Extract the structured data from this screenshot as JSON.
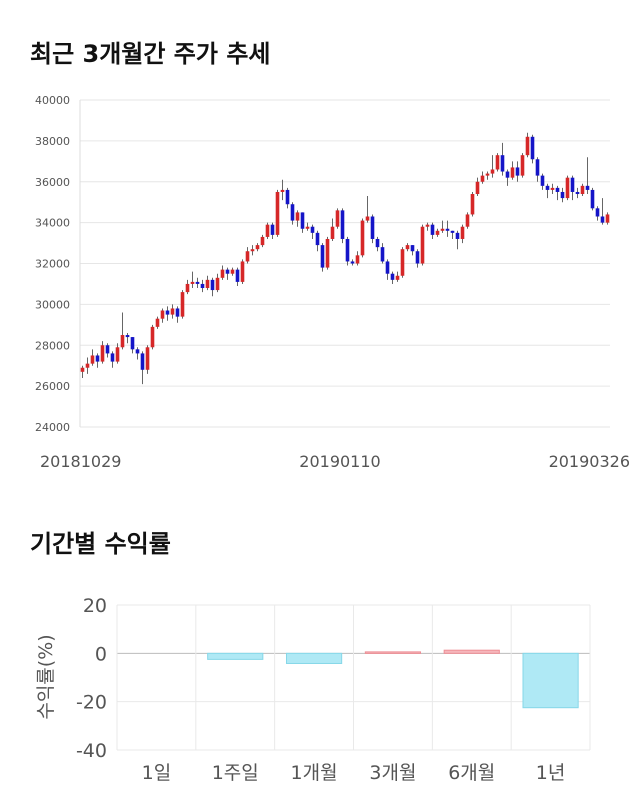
{
  "page": {
    "price_title": "최근 3개월간 주가 추세",
    "return_title": "기간별 수익률"
  },
  "chart_data": [
    {
      "type": "candlestick",
      "title": "최근 3개월간 주가 추세",
      "ylim": [
        24000,
        40000
      ],
      "yticks": [
        24000,
        26000,
        28000,
        30000,
        32000,
        34000,
        36000,
        38000,
        40000
      ],
      "x_tick_labels": [
        "20181029",
        "20190110",
        "20190326"
      ],
      "colors": {
        "up": "#d62728",
        "down": "#1515c8",
        "grid": "#e6e6e6"
      },
      "candles": [
        [
          26700,
          26900,
          26400,
          27000
        ],
        [
          26900,
          27100,
          26600,
          27400
        ],
        [
          27100,
          27500,
          27000,
          27800
        ],
        [
          27500,
          27200,
          26900,
          27600
        ],
        [
          27200,
          28000,
          27100,
          28200
        ],
        [
          28000,
          27600,
          27400,
          28100
        ],
        [
          27600,
          27200,
          26900,
          27700
        ],
        [
          27200,
          27900,
          27100,
          28100
        ],
        [
          27900,
          28500,
          27800,
          29600
        ],
        [
          28500,
          28400,
          28100,
          28600
        ],
        [
          28400,
          27800,
          27600,
          28400
        ],
        [
          27800,
          27600,
          27300,
          27900
        ],
        [
          27600,
          26800,
          26100,
          27700
        ],
        [
          26800,
          27900,
          26600,
          28000
        ],
        [
          27900,
          28900,
          27800,
          29000
        ],
        [
          28900,
          29300,
          28800,
          29400
        ],
        [
          29300,
          29700,
          29100,
          29800
        ],
        [
          29700,
          29500,
          29200,
          29900
        ],
        [
          29500,
          29800,
          29300,
          30000
        ],
        [
          29800,
          29400,
          29100,
          29900
        ],
        [
          29400,
          30600,
          29300,
          30700
        ],
        [
          30600,
          31000,
          30500,
          31200
        ],
        [
          31000,
          31100,
          30800,
          31600
        ],
        [
          31100,
          31000,
          30800,
          31300
        ],
        [
          31000,
          30800,
          30600,
          31200
        ],
        [
          30800,
          31200,
          30700,
          31400
        ],
        [
          31200,
          30700,
          30400,
          31300
        ],
        [
          30700,
          31300,
          30600,
          31500
        ],
        [
          31300,
          31700,
          31200,
          31900
        ],
        [
          31700,
          31500,
          31200,
          31800
        ],
        [
          31500,
          31700,
          31400,
          31800
        ],
        [
          31700,
          31100,
          30900,
          31800
        ],
        [
          31100,
          32100,
          31000,
          32200
        ],
        [
          32100,
          32600,
          32000,
          32800
        ],
        [
          32600,
          32700,
          32400,
          32900
        ],
        [
          32700,
          32900,
          32600,
          33000
        ],
        [
          32900,
          33300,
          32800,
          33400
        ],
        [
          33300,
          33900,
          33200,
          34000
        ],
        [
          33900,
          33400,
          33200,
          34000
        ],
        [
          33400,
          35500,
          33300,
          35600
        ],
        [
          35500,
          35600,
          35100,
          36100
        ],
        [
          35600,
          34900,
          34700,
          35700
        ],
        [
          34900,
          34100,
          33900,
          35000
        ],
        [
          34100,
          34500,
          33800,
          34600
        ],
        [
          34500,
          33700,
          33500,
          34500
        ],
        [
          33700,
          33800,
          33600,
          34000
        ],
        [
          33800,
          33500,
          33200,
          33900
        ],
        [
          33500,
          32900,
          32600,
          33600
        ],
        [
          32900,
          31800,
          31600,
          33000
        ],
        [
          31800,
          33200,
          31700,
          33300
        ],
        [
          33200,
          33800,
          33100,
          34200
        ],
        [
          33800,
          34600,
          33700,
          34700
        ],
        [
          34600,
          33200,
          33000,
          34700
        ],
        [
          33200,
          32100,
          31900,
          33300
        ],
        [
          32100,
          32000,
          31900,
          32200
        ],
        [
          32000,
          32400,
          31900,
          32600
        ],
        [
          32400,
          34100,
          32300,
          34200
        ],
        [
          34100,
          34300,
          34000,
          35300
        ],
        [
          34300,
          33200,
          33000,
          34400
        ],
        [
          33200,
          32800,
          32600,
          33300
        ],
        [
          32800,
          32100,
          32000,
          33000
        ],
        [
          32100,
          31500,
          31200,
          32200
        ],
        [
          31500,
          31200,
          31000,
          31600
        ],
        [
          31200,
          31400,
          31100,
          31600
        ],
        [
          31400,
          32700,
          31300,
          32800
        ],
        [
          32700,
          32900,
          32600,
          33000
        ],
        [
          32900,
          32600,
          32400,
          32900
        ],
        [
          32600,
          32000,
          31800,
          32700
        ],
        [
          32000,
          33800,
          31900,
          33900
        ],
        [
          33800,
          33900,
          33600,
          34000
        ],
        [
          33900,
          33400,
          33200,
          34000
        ],
        [
          33400,
          33600,
          33300,
          33700
        ],
        [
          33600,
          33700,
          33500,
          34100
        ],
        [
          33700,
          33600,
          33300,
          34100
        ],
        [
          33600,
          33500,
          33200,
          33600
        ],
        [
          33500,
          33200,
          32700,
          33600
        ],
        [
          33200,
          33800,
          33000,
          33900
        ],
        [
          33800,
          34400,
          33700,
          34500
        ],
        [
          34400,
          35400,
          34300,
          35500
        ],
        [
          35400,
          36000,
          35300,
          36200
        ],
        [
          36000,
          36300,
          35900,
          36500
        ],
        [
          36300,
          36400,
          36100,
          36500
        ],
        [
          36400,
          36600,
          36200,
          37300
        ],
        [
          36600,
          37300,
          36500,
          37400
        ],
        [
          37300,
          36500,
          36300,
          37900
        ],
        [
          36500,
          36200,
          35800,
          36600
        ],
        [
          36200,
          36700,
          36100,
          37000
        ],
        [
          36700,
          36300,
          36000,
          37000
        ],
        [
          36300,
          37300,
          36200,
          37400
        ],
        [
          37300,
          38200,
          37200,
          38400
        ],
        [
          38200,
          37100,
          36900,
          38300
        ],
        [
          37100,
          36300,
          36000,
          37200
        ],
        [
          36300,
          35800,
          35600,
          36400
        ],
        [
          35800,
          35600,
          35200,
          35900
        ],
        [
          35600,
          35700,
          35400,
          35900
        ],
        [
          35700,
          35500,
          35100,
          35800
        ],
        [
          35500,
          35200,
          35000,
          35700
        ],
        [
          35200,
          36200,
          35100,
          36300
        ],
        [
          36200,
          35500,
          35100,
          36300
        ],
        [
          35500,
          35400,
          35200,
          35700
        ],
        [
          35400,
          35800,
          35300,
          35900
        ],
        [
          35800,
          35600,
          35400,
          37200
        ],
        [
          35600,
          34700,
          34600,
          35700
        ],
        [
          34700,
          34300,
          34100,
          34800
        ],
        [
          34300,
          34000,
          33900,
          35200
        ],
        [
          34000,
          34400,
          33900,
          34500
        ]
      ]
    },
    {
      "type": "bar",
      "title": "기간별 수익률",
      "ylabel": "수익률(%)",
      "ylim": [
        -40,
        20
      ],
      "yticks": [
        -40,
        -20,
        0,
        20
      ],
      "categories": [
        "1일",
        "1주일",
        "1개월",
        "3개월",
        "6개월",
        "1년"
      ],
      "values": [
        0,
        -2.5,
        -4.2,
        0.6,
        1.3,
        -22.5
      ],
      "colors": {
        "positive_fill": "#f6b6bb",
        "positive_edge": "#ee8e95",
        "negative_fill": "#afe9f5",
        "negative_edge": "#86d7e8",
        "grid": "#e9e9e9"
      }
    }
  ]
}
